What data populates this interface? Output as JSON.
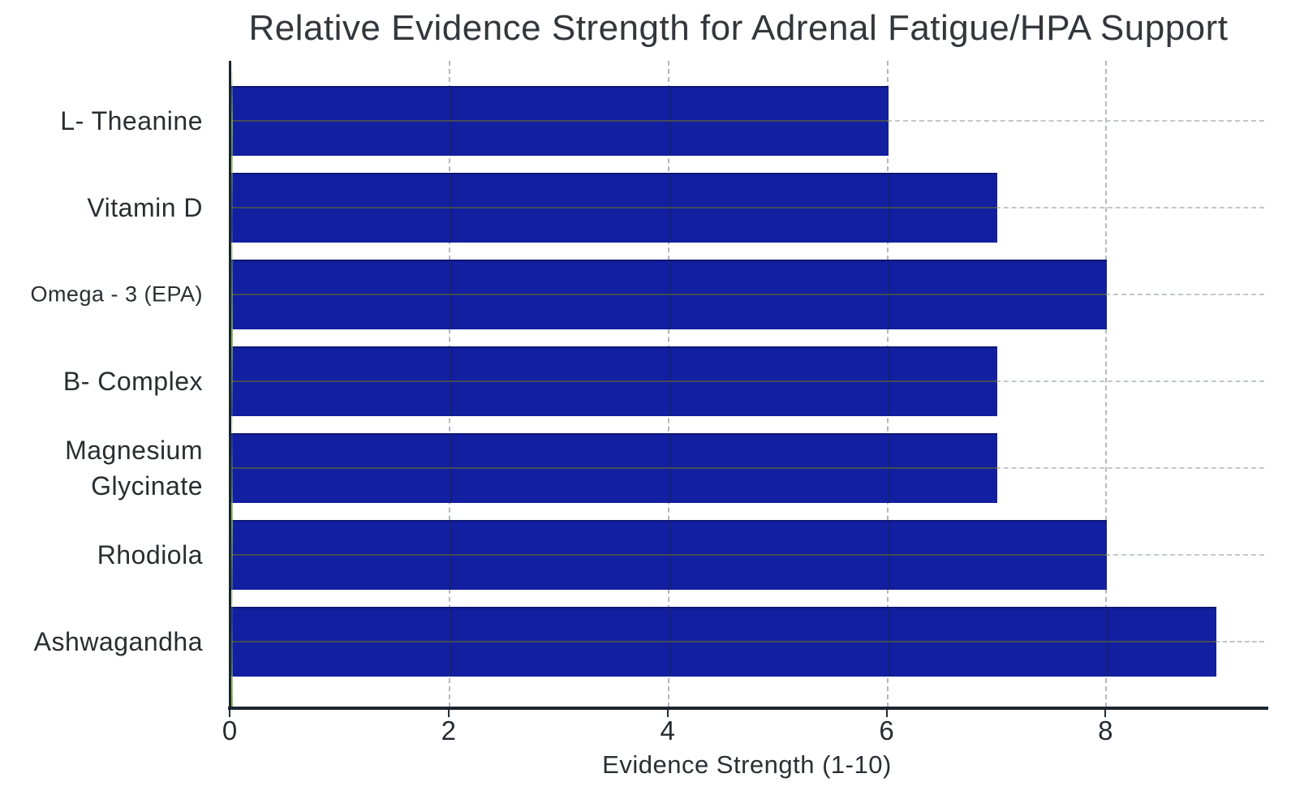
{
  "chart_data": {
    "type": "bar",
    "orientation": "horizontal",
    "title": "Relative Evidence Strength for Adrenal Fatigue/HPA Support",
    "xlabel": "Evidence Strength (1-10)",
    "ylabel": "",
    "categories": [
      {
        "label": "L- Theanine",
        "display": "normal"
      },
      {
        "label": "Vitamin D",
        "display": "normal"
      },
      {
        "label": "Omega - 3 (EPA)",
        "display": "shrink"
      },
      {
        "label": "B- Complex",
        "display": "normal"
      },
      {
        "label": "Magnesium Glycinate",
        "display": "wrap"
      },
      {
        "label": "Rhodiola",
        "display": "normal"
      },
      {
        "label": "Ashwagandha",
        "display": "normal"
      }
    ],
    "values": [
      6,
      7,
      8,
      7,
      7,
      8,
      9
    ],
    "xticks": [
      0,
      2,
      4,
      6,
      8
    ],
    "xlim": [
      0,
      9.45
    ],
    "grid": "dashed",
    "legend": "none",
    "colors": {
      "bar": "#121fa0",
      "axis": "#1b2530",
      "title_text": "#33373b",
      "label_text": "#2a2d31",
      "grid_light": "#b3b8bf",
      "grid_on_bar": "#4a544c",
      "axis_artifact_green": "#76b043"
    }
  }
}
